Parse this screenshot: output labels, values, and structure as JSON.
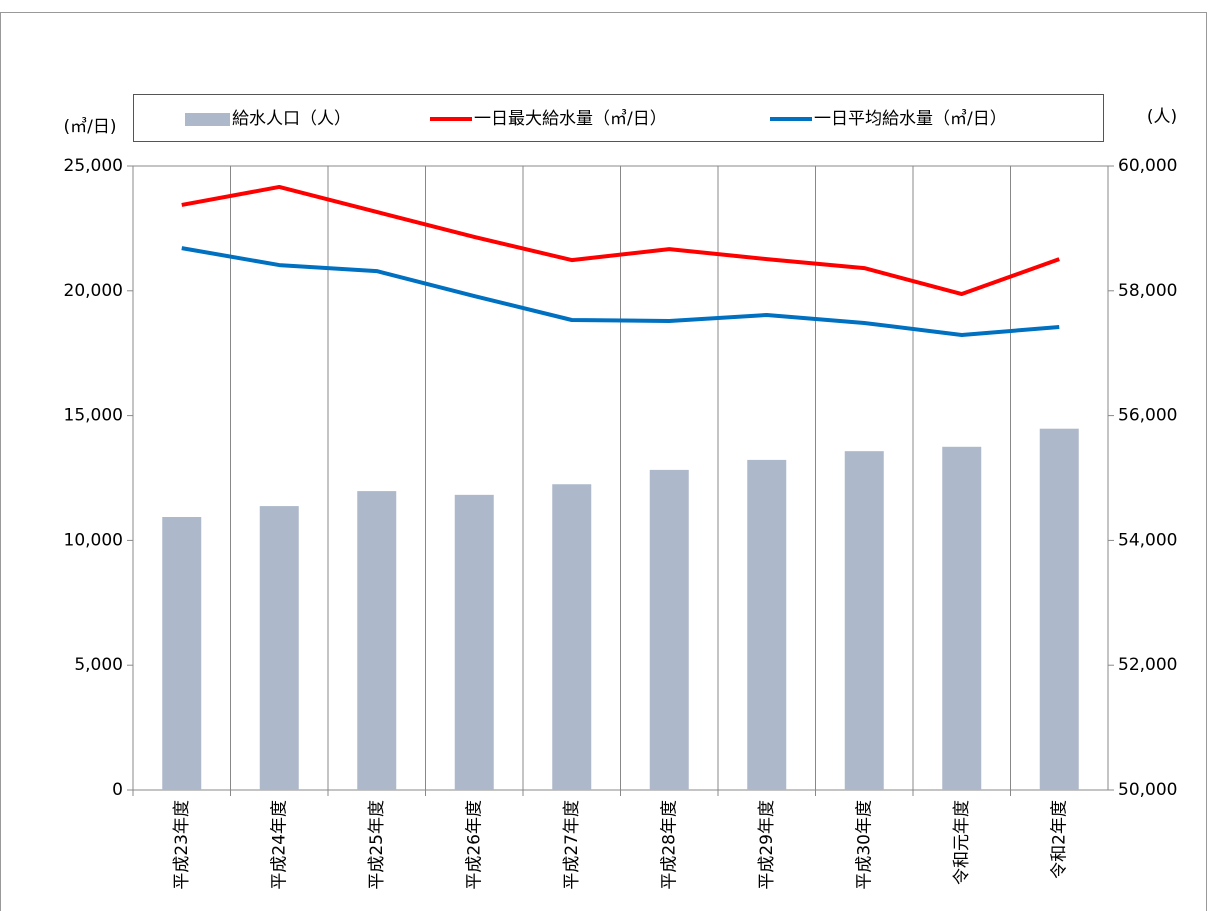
{
  "chart_data": {
    "type": "bar_line",
    "y_label": "(㎥/日)",
    "y2_label": "(人)",
    "categories": [
      "平成23年度",
      "平成24年度",
      "平成25年度",
      "平成26年度",
      "平成27年度",
      "平成28年度",
      "平成29年度",
      "平成30年度",
      "令和元年度",
      "令和2年度"
    ],
    "series": [
      {
        "name": "給水人口（人）",
        "type": "bar",
        "axis": "y2",
        "color": "#adb9ca",
        "values": [
          54375,
          54550,
          54790,
          54730,
          54900,
          55130,
          55290,
          55430,
          55500,
          55790
        ]
      },
      {
        "name": "一日最大給水量（㎥/日）",
        "type": "line",
        "color": "#ff0000",
        "values": [
          23440,
          24160,
          23160,
          22160,
          21230,
          21670,
          21270,
          20910,
          19870,
          21270
        ]
      },
      {
        "name": "一日平均給水量（㎥/日）",
        "type": "line",
        "color": "#0070c0",
        "values": [
          21710,
          21030,
          20790,
          19790,
          18830,
          18790,
          19030,
          18710,
          18230,
          18550
        ]
      }
    ],
    "ylim": [
      0,
      25000
    ],
    "yticks": [
      0,
      {
        "value": 5000,
        "label": "5,000"
      },
      {
        "value": 10000,
        "label": "10,000"
      },
      {
        "value": 15000,
        "label": "15,000"
      },
      {
        "value": 20000,
        "label": "20,000"
      },
      {
        "value": 25000,
        "label": "25,000"
      }
    ],
    "y2lim": [
      50000,
      60000
    ],
    "y2ticks": [
      {
        "value": 50000,
        "label": "50,000"
      },
      {
        "value": 52000,
        "label": "52,000"
      },
      {
        "value": 54000,
        "label": "54,000"
      },
      {
        "value": 56000,
        "label": "56,000"
      },
      {
        "value": 58000,
        "label": "58,000"
      },
      {
        "value": 60000,
        "label": "60,000"
      }
    ],
    "grid": false
  }
}
